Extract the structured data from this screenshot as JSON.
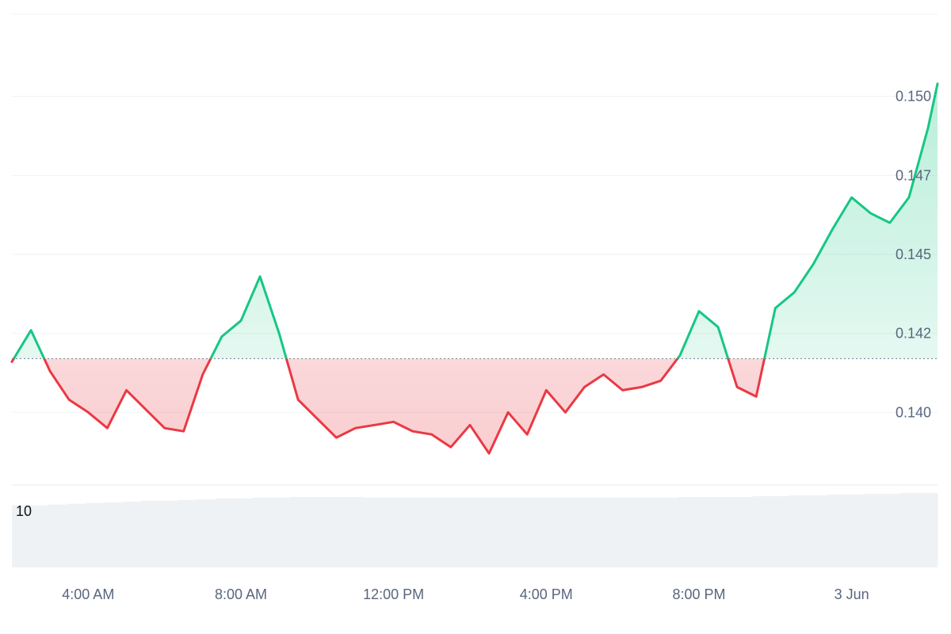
{
  "chart_data": {
    "type": "area",
    "baseline": 0.1417,
    "y_ticks": [
      "0.150",
      "0.147",
      "0.145",
      "0.142",
      "0.140"
    ],
    "y_tick_values": [
      0.15,
      0.1475,
      0.145,
      0.1425,
      0.14
    ],
    "ylim": [
      0.1377,
      0.1526
    ],
    "x_ticks": [
      "4:00 AM",
      "8:00 AM",
      "12:00 PM",
      "4:00 PM",
      "8:00 PM",
      "3 Jun"
    ],
    "x_tick_values": [
      "04:00",
      "08:00",
      "12:00",
      "16:00",
      "20:00",
      "24:00"
    ],
    "x_range": [
      "02:00",
      "26:15"
    ],
    "x": [
      "02:00",
      "02:30",
      "03:00",
      "03:30",
      "04:00",
      "04:30",
      "05:00",
      "05:30",
      "06:00",
      "06:30",
      "07:00",
      "07:30",
      "08:00",
      "08:30",
      "09:00",
      "09:30",
      "10:00",
      "10:30",
      "11:00",
      "11:30",
      "12:00",
      "12:30",
      "13:00",
      "13:30",
      "14:00",
      "14:30",
      "15:00",
      "15:30",
      "16:00",
      "16:30",
      "17:00",
      "17:30",
      "18:00",
      "18:30",
      "19:00",
      "19:30",
      "20:00",
      "20:30",
      "21:00",
      "21:30",
      "22:00",
      "22:30",
      "23:00",
      "23:30",
      "24:00",
      "24:30",
      "25:00",
      "25:30",
      "26:00",
      "26:15"
    ],
    "values": [
      0.1416,
      0.1426,
      0.1413,
      0.1404,
      0.14,
      0.1395,
      0.1407,
      0.1401,
      0.1395,
      0.1394,
      0.1412,
      0.1424,
      0.1429,
      0.1443,
      0.1425,
      0.1404,
      0.1398,
      0.1392,
      0.1395,
      0.1396,
      0.1397,
      0.1394,
      0.1393,
      0.1389,
      0.1396,
      0.1387,
      0.14,
      0.1393,
      0.1407,
      0.14,
      0.1408,
      0.1412,
      0.1407,
      0.1408,
      0.141,
      0.1418,
      0.1432,
      0.1427,
      0.1408,
      0.1405,
      0.1433,
      0.1438,
      0.1447,
      0.1458,
      0.1468,
      0.1463,
      0.146,
      0.1468,
      0.149,
      0.1504
    ],
    "volume_label": "10",
    "volume": [
      0.82,
      0.82,
      0.83,
      0.84,
      0.85,
      0.86,
      0.87,
      0.88,
      0.88,
      0.89,
      0.9,
      0.91,
      0.91,
      0.92,
      0.92,
      0.93,
      0.93,
      0.93,
      0.93,
      0.92,
      0.92,
      0.92,
      0.92,
      0.92,
      0.92,
      0.92,
      0.92,
      0.92,
      0.92,
      0.92,
      0.92,
      0.92,
      0.92,
      0.92,
      0.92,
      0.92,
      0.93,
      0.93,
      0.93,
      0.93,
      0.94,
      0.94,
      0.95,
      0.95,
      0.96,
      0.96,
      0.97,
      0.97,
      0.98,
      0.98
    ],
    "up_color": "#16c784",
    "down_color": "#ea3943",
    "volume_color": "#eff2f5",
    "grid": true
  }
}
